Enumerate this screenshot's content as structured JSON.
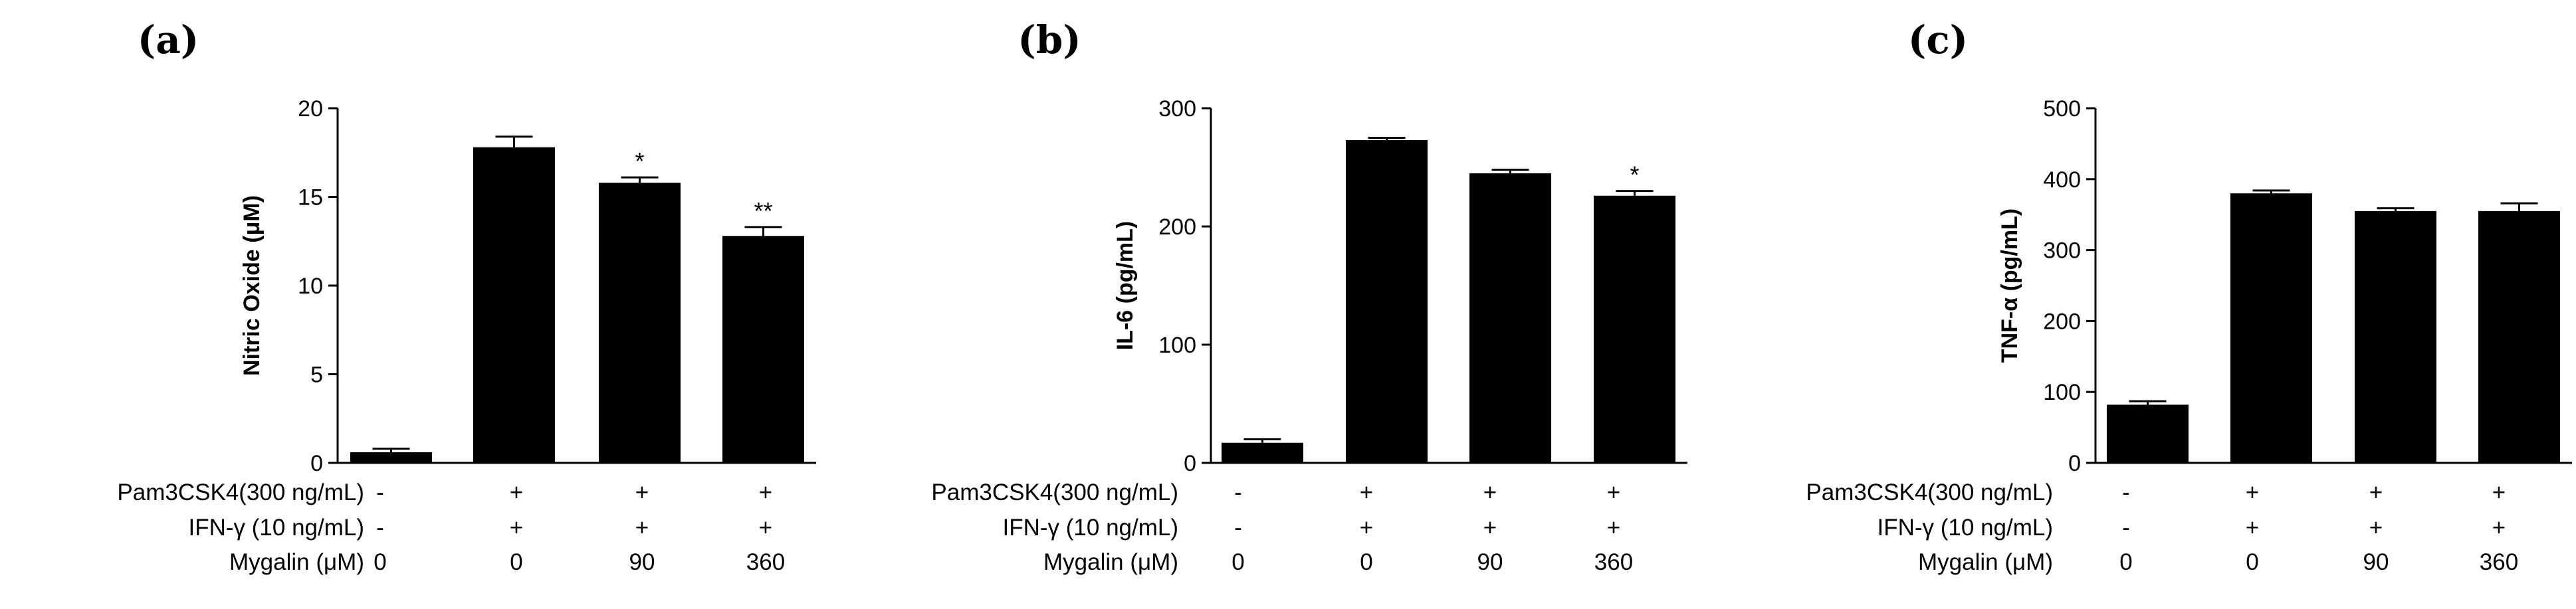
{
  "chart_data": [
    {
      "type": "bar",
      "panel_label": "(a)",
      "ylabel": "Nitric Oxide (μM)",
      "ylim": [
        0,
        20
      ],
      "yticks": [
        "0",
        "5",
        "10",
        "15",
        "20"
      ],
      "values": [
        0.6,
        17.8,
        15.8,
        12.8
      ],
      "errors": [
        0.2,
        0.6,
        0.3,
        0.5
      ],
      "annotations": [
        "",
        "",
        "*",
        "**"
      ],
      "conditions": {
        "pam_label": "Pam3CSK4(300 ng/mL)",
        "pam": [
          "-",
          "+",
          "+",
          "+"
        ],
        "ifn_label": "IFN-γ (10 ng/mL)",
        "ifn": [
          "-",
          "+",
          "+",
          "+"
        ],
        "myg_label": "Mygalin (μM)",
        "myg": [
          "0",
          "0",
          "90",
          "360"
        ]
      }
    },
    {
      "type": "bar",
      "panel_label": "(b)",
      "ylabel": "IL-6 (pg/mL)",
      "ylim": [
        0,
        300
      ],
      "yticks": [
        "0",
        "100",
        "200",
        "300"
      ],
      "values": [
        17,
        273,
        245,
        226
      ],
      "errors": [
        3,
        2,
        3,
        4
      ],
      "annotations": [
        "",
        "",
        "",
        "*"
      ],
      "conditions": {
        "pam_label": "Pam3CSK4(300 ng/mL)",
        "pam": [
          "-",
          "+",
          "+",
          "+"
        ],
        "ifn_label": "IFN-γ (10 ng/mL)",
        "ifn": [
          "-",
          "+",
          "+",
          "+"
        ],
        "myg_label": "Mygalin (μM)",
        "myg": [
          "0",
          "0",
          "90",
          "360"
        ]
      }
    },
    {
      "type": "bar",
      "panel_label": "(c)",
      "ylabel": "TNF-α (pg/mL)",
      "ylim": [
        0,
        500
      ],
      "yticks": [
        "0",
        "100",
        "200",
        "300",
        "400",
        "500"
      ],
      "values": [
        82,
        380,
        355,
        355
      ],
      "errors": [
        5,
        4,
        4,
        11
      ],
      "annotations": [
        "",
        "",
        "",
        ""
      ],
      "conditions": {
        "pam_label": "Pam3CSK4(300 ng/mL)",
        "pam": [
          "-",
          "+",
          "+",
          "+"
        ],
        "ifn_label": "IFN-γ (10 ng/mL)",
        "ifn": [
          "-",
          "+",
          "+",
          "+"
        ],
        "myg_label": "Mygalin (μM)",
        "myg": [
          "0",
          "0",
          "90",
          "360"
        ]
      }
    }
  ]
}
